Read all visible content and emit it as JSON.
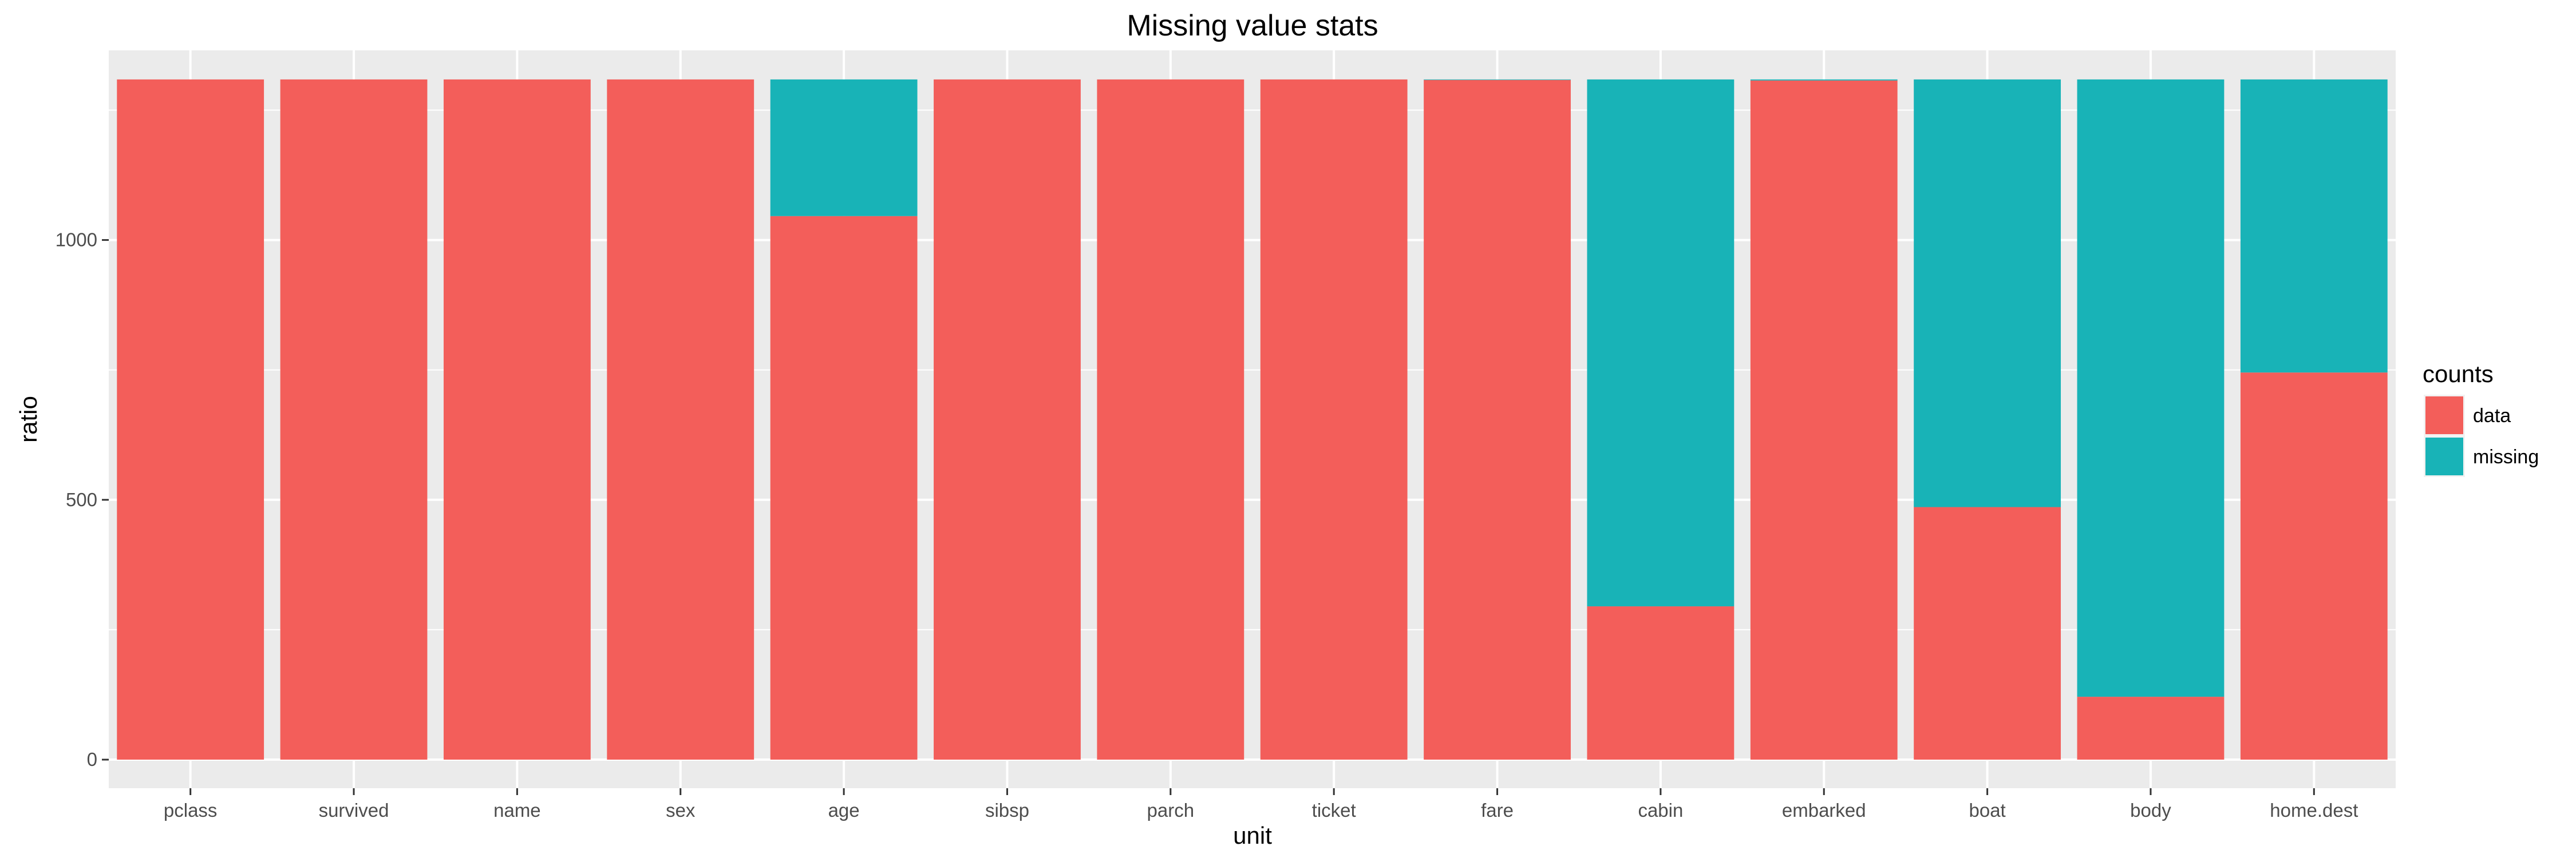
{
  "chart_data": {
    "type": "bar",
    "stacked": true,
    "title": "Missing value stats",
    "xlabel": "unit",
    "ylabel": "ratio",
    "ylim": [
      0,
      1309
    ],
    "yticks": [
      0,
      500,
      1000
    ],
    "grid": true,
    "categories": [
      "pclass",
      "survived",
      "name",
      "sex",
      "age",
      "sibsp",
      "parch",
      "ticket",
      "fare",
      "cabin",
      "embarked",
      "boat",
      "body",
      "home.dest"
    ],
    "series": [
      {
        "name": "data",
        "color": "#F35E5A",
        "values": [
          1309,
          1309,
          1309,
          1309,
          1046,
          1309,
          1309,
          1309,
          1308,
          295,
          1307,
          486,
          121,
          745
        ]
      },
      {
        "name": "missing",
        "color": "#18B3B7",
        "values": [
          0,
          0,
          0,
          0,
          263,
          0,
          0,
          0,
          1,
          1014,
          2,
          823,
          1188,
          564
        ]
      }
    ],
    "legend": {
      "title": "counts",
      "position": "right"
    }
  }
}
